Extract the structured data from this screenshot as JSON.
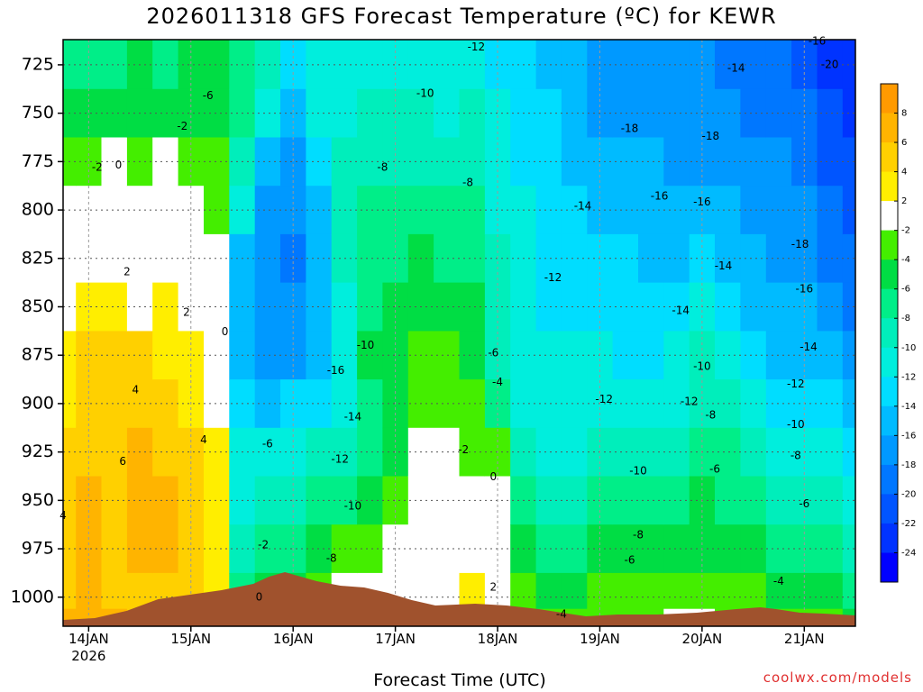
{
  "chart_data": {
    "type": "heatmap",
    "title": "2026011318 GFS Forecast Temperature (ºC) for KEWR",
    "xlabel": "Forecast Time (UTC)",
    "ylabel": "",
    "credit": "coolwx.com/models",
    "y_scale": "pressure (hPa), inverted",
    "ylim": [
      1015,
      712
    ],
    "xlim": [
      "2026-01-13T18:00Z",
      "2026-01-21T12:00Z"
    ],
    "yticks": [
      725,
      750,
      775,
      800,
      825,
      850,
      875,
      900,
      925,
      950,
      975,
      1000
    ],
    "xticks": [
      {
        "label": "14JAN",
        "sublabel": "2026",
        "time": "2026-01-14T00:00Z"
      },
      {
        "label": "15JAN",
        "sublabel": "",
        "time": "2026-01-15T00:00Z"
      },
      {
        "label": "16JAN",
        "sublabel": "",
        "time": "2026-01-16T00:00Z"
      },
      {
        "label": "17JAN",
        "sublabel": "",
        "time": "2026-01-17T00:00Z"
      },
      {
        "label": "18JAN",
        "sublabel": "",
        "time": "2026-01-18T00:00Z"
      },
      {
        "label": "19JAN",
        "sublabel": "",
        "time": "2026-01-19T00:00Z"
      },
      {
        "label": "20JAN",
        "sublabel": "",
        "time": "2026-01-20T00:00Z"
      },
      {
        "label": "21JAN",
        "sublabel": "",
        "time": "2026-01-21T00:00Z"
      }
    ],
    "grid": true,
    "colorbar": {
      "placement": "right",
      "labels": [
        "8",
        "6",
        "4",
        "2",
        "-2",
        "-4",
        "-6",
        "-8",
        "-10",
        "-12",
        "-14",
        "-16",
        "-18",
        "-20",
        "-22",
        "-24"
      ],
      "colors": [
        "#ff9a00",
        "#ffb400",
        "#ffd000",
        "#ffee00",
        "#ffffff",
        "#44ee00",
        "#00dd44",
        "#00ee88",
        "#00eebb",
        "#00eedd",
        "#00ddff",
        "#00bbff",
        "#0099ff",
        "#0077ff",
        "#0055ff",
        "#0033ff",
        "#0000ff"
      ]
    },
    "columns": [
      {
        "time": "2026-01-13T18:00Z",
        "temps": [
          -7,
          -6,
          -3,
          -2,
          0,
          1,
          2,
          3,
          4,
          4,
          5,
          5,
          6
        ]
      },
      {
        "time": "2026-01-14T00:00Z",
        "temps": [
          -8,
          -6,
          -3,
          -1,
          1,
          2,
          4,
          5,
          5,
          6,
          6,
          6,
          7
        ]
      },
      {
        "time": "2026-01-14T06:00Z",
        "temps": [
          -7,
          -5,
          -2,
          0,
          1,
          2,
          4,
          5,
          5,
          5,
          5,
          5,
          6
        ]
      },
      {
        "time": "2026-01-14T12:00Z",
        "temps": [
          -6,
          -5,
          -3,
          -1,
          0,
          1,
          4,
          5,
          6,
          6,
          6,
          5,
          5
        ]
      },
      {
        "time": "2026-01-14T18:00Z",
        "temps": [
          -7,
          -5,
          -2,
          -1,
          1,
          2,
          3,
          4,
          5,
          6,
          6,
          4,
          4
        ]
      },
      {
        "time": "2026-01-15T00:00Z",
        "temps": [
          -6,
          -5,
          -3,
          -1,
          0,
          1,
          2,
          3,
          4,
          5,
          5,
          4,
          4
        ]
      },
      {
        "time": "2026-01-15T06:00Z",
        "temps": [
          -6,
          -5,
          -4,
          -3,
          -2,
          -1,
          0,
          1,
          2,
          3,
          3,
          2,
          0
        ]
      },
      {
        "time": "2026-01-15T12:00Z",
        "temps": [
          -8,
          -8,
          -10,
          -12,
          -15,
          -16,
          -15,
          -14,
          -12,
          -11,
          -10,
          -8,
          -7
        ]
      },
      {
        "time": "2026-01-15T18:00Z",
        "temps": [
          -10,
          -12,
          -15,
          -17,
          -18,
          -18,
          -17,
          -15,
          -12,
          -10,
          -8,
          -6,
          -4
        ]
      },
      {
        "time": "2026-01-16T00:00Z",
        "temps": [
          -13,
          -15,
          -17,
          -18,
          -19,
          -18,
          -17,
          -14,
          -12,
          -10,
          -8,
          -5,
          -3
        ]
      },
      {
        "time": "2026-01-16T06:00Z",
        "temps": [
          -12,
          -12,
          -14,
          -16,
          -16,
          -16,
          -15,
          -13,
          -10,
          -8,
          -6,
          -4,
          -3
        ]
      },
      {
        "time": "2026-01-16T12:00Z",
        "temps": [
          -12,
          -11,
          -10,
          -10,
          -10,
          -11,
          -12,
          -11,
          -9,
          -7,
          -4,
          -2,
          -1
        ]
      },
      {
        "time": "2026-01-16T18:00Z",
        "temps": [
          -12,
          -10,
          -9,
          -8,
          -7,
          -7,
          -6,
          -7,
          -8,
          -6,
          -3,
          -1,
          0
        ]
      },
      {
        "time": "2026-01-17T00:00Z",
        "temps": [
          -12,
          -10,
          -9,
          -8,
          -7,
          -6,
          -6,
          -6,
          -5,
          -3,
          -1,
          0,
          1
        ]
      },
      {
        "time": "2026-01-17T06:00Z",
        "temps": [
          -11,
          -10,
          -9,
          -8,
          -6,
          -5,
          -4,
          -3,
          -1,
          0,
          0,
          1,
          1
        ]
      },
      {
        "time": "2026-01-17T12:00Z",
        "temps": [
          -11,
          -11,
          -9,
          -8,
          -7,
          -6,
          -4,
          -3,
          -1,
          0,
          0,
          1,
          1
        ]
      },
      {
        "time": "2026-01-17T18:00Z",
        "temps": [
          -11,
          -10,
          -9,
          -8,
          -7,
          -6,
          -5,
          -4,
          -3,
          -1,
          0,
          2,
          3
        ]
      },
      {
        "time": "2026-01-18T00:00Z",
        "temps": [
          -13,
          -12,
          -12,
          -11,
          -10,
          -10,
          -9,
          -7,
          -4,
          -1,
          0,
          1,
          1
        ]
      },
      {
        "time": "2026-01-18T06:00Z",
        "temps": [
          -14,
          -13,
          -13,
          -12,
          -12,
          -12,
          -12,
          -11,
          -10,
          -8,
          -6,
          -4,
          -3
        ]
      },
      {
        "time": "2026-01-18T12:00Z",
        "temps": [
          -15,
          -14,
          -14,
          -14,
          -13,
          -13,
          -12,
          -12,
          -11,
          -9,
          -7,
          -5,
          -4
        ]
      },
      {
        "time": "2026-01-18T18:00Z",
        "temps": [
          -16,
          -16,
          -15,
          -14,
          -13,
          -13,
          -12,
          -12,
          -11,
          -9,
          -7,
          -5,
          -4
        ]
      },
      {
        "time": "2026-01-19T00:00Z",
        "temps": [
          -17,
          -17,
          -16,
          -15,
          -14,
          -13,
          -12,
          -12,
          -10,
          -8,
          -6,
          -4,
          -3
        ]
      },
      {
        "time": "2026-01-19T06:00Z",
        "temps": [
          -17,
          -17,
          -16,
          -15,
          -14,
          -14,
          -13,
          -12,
          -10,
          -8,
          -6,
          -4,
          -3
        ]
      },
      {
        "time": "2026-01-19T12:00Z",
        "temps": [
          -17,
          -17,
          -16,
          -16,
          -15,
          -14,
          -13,
          -12,
          -10,
          -8,
          -6,
          -4,
          -3
        ]
      },
      {
        "time": "2026-01-19T18:00Z",
        "temps": [
          -18,
          -18,
          -17,
          -16,
          -15,
          -14,
          -12,
          -11,
          -9,
          -7,
          -5,
          -4,
          -2
        ]
      },
      {
        "time": "2026-01-20T00:00Z",
        "temps": [
          -18,
          -18,
          -17,
          -16,
          -14,
          -12,
          -10,
          -9,
          -8,
          -6,
          -5,
          -4,
          -2
        ]
      },
      {
        "time": "2026-01-20T06:00Z",
        "temps": [
          -19,
          -18,
          -17,
          -16,
          -15,
          -13,
          -11,
          -10,
          -8,
          -7,
          -5,
          -4,
          -3
        ]
      },
      {
        "time": "2026-01-20T12:00Z",
        "temps": [
          -19,
          -19,
          -18,
          -17,
          -16,
          -15,
          -14,
          -12,
          -10,
          -8,
          -6,
          -4,
          -3
        ]
      },
      {
        "time": "2026-01-20T18:00Z",
        "temps": [
          -20,
          -19,
          -18,
          -18,
          -17,
          -16,
          -15,
          -13,
          -11,
          -9,
          -7,
          -5,
          -3
        ]
      },
      {
        "time": "2026-01-21T00:00Z",
        "temps": [
          -21,
          -20,
          -19,
          -18,
          -17,
          -16,
          -15,
          -13,
          -11,
          -9,
          -7,
          -5,
          -3
        ]
      },
      {
        "time": "2026-01-21T06:00Z",
        "temps": [
          -23,
          -22,
          -21,
          -20,
          -19,
          -18,
          -16,
          -14,
          -12,
          -10,
          -8,
          -6,
          -4
        ]
      },
      {
        "time": "2026-01-21T12:00Z",
        "temps": [
          -24,
          -23,
          -22,
          -21,
          -20,
          -19,
          -17,
          -15,
          -13,
          -11,
          -9,
          -7,
          -5
        ]
      }
    ],
    "levels": [
      725,
      750,
      775,
      800,
      825,
      850,
      875,
      900,
      925,
      950,
      975,
      1000,
      1012
    ],
    "contour_labels": [
      {
        "text": "-12",
        "time": "2026-01-17T19:00Z",
        "p": 716
      },
      {
        "text": "-16",
        "time": "2026-01-21T03:00Z",
        "p": 713
      },
      {
        "text": "-20",
        "time": "2026-01-21T06:00Z",
        "p": 725
      },
      {
        "text": "-14",
        "time": "2026-01-20T08:00Z",
        "p": 727
      },
      {
        "text": "-6",
        "time": "2026-01-15T04:00Z",
        "p": 741
      },
      {
        "text": "-10",
        "time": "2026-01-17T07:00Z",
        "p": 740
      },
      {
        "text": "-2",
        "time": "2026-01-14T22:00Z",
        "p": 757
      },
      {
        "text": "-18",
        "time": "2026-01-19T07:00Z",
        "p": 758
      },
      {
        "text": "-18",
        "time": "2026-01-20T02:00Z",
        "p": 762
      },
      {
        "text": "-2",
        "time": "2026-01-14T02:00Z",
        "p": 778
      },
      {
        "text": "0",
        "time": "2026-01-14T07:00Z",
        "p": 777
      },
      {
        "text": "-8",
        "time": "2026-01-16T21:00Z",
        "p": 778
      },
      {
        "text": "-8",
        "time": "2026-01-17T17:00Z",
        "p": 786
      },
      {
        "text": "-16",
        "time": "2026-01-20T00:00Z",
        "p": 796
      },
      {
        "text": "-16",
        "time": "2026-01-19T14:00Z",
        "p": 793
      },
      {
        "text": "-14",
        "time": "2026-01-18T20:00Z",
        "p": 798
      },
      {
        "text": "-18",
        "time": "2026-01-20T23:00Z",
        "p": 818
      },
      {
        "text": "-14",
        "time": "2026-01-20T05:00Z",
        "p": 829
      },
      {
        "text": "2",
        "time": "2026-01-14T09:00Z",
        "p": 832
      },
      {
        "text": "-12",
        "time": "2026-01-18T13:00Z",
        "p": 835
      },
      {
        "text": "-16",
        "time": "2026-01-21T00:00Z",
        "p": 841
      },
      {
        "text": "2",
        "time": "2026-01-14T23:00Z",
        "p": 853
      },
      {
        "text": "-14",
        "time": "2026-01-19T19:00Z",
        "p": 852
      },
      {
        "text": "0",
        "time": "2026-01-15T08:00Z",
        "p": 863
      },
      {
        "text": "-10",
        "time": "2026-01-16T17:00Z",
        "p": 870
      },
      {
        "text": "-6",
        "time": "2026-01-17T23:00Z",
        "p": 874
      },
      {
        "text": "-16",
        "time": "2026-01-16T10:00Z",
        "p": 883
      },
      {
        "text": "-10",
        "time": "2026-01-20T00:00Z",
        "p": 881
      },
      {
        "text": "-14",
        "time": "2026-01-21T01:00Z",
        "p": 871
      },
      {
        "text": "4",
        "time": "2026-01-14T11:00Z",
        "p": 893
      },
      {
        "text": "-4",
        "time": "2026-01-18T00:00Z",
        "p": 889
      },
      {
        "text": "-12",
        "time": "2026-01-19T01:00Z",
        "p": 898
      },
      {
        "text": "-12",
        "time": "2026-01-19T21:00Z",
        "p": 899
      },
      {
        "text": "-12",
        "time": "2026-01-20T22:00Z",
        "p": 890
      },
      {
        "text": "-14",
        "time": "2026-01-16T14:00Z",
        "p": 907
      },
      {
        "text": "-8",
        "time": "2026-01-20T02:00Z",
        "p": 906
      },
      {
        "text": "-10",
        "time": "2026-01-20T22:00Z",
        "p": 911
      },
      {
        "text": "4",
        "time": "2026-01-15T03:00Z",
        "p": 919
      },
      {
        "text": "-2",
        "time": "2026-01-17T16:00Z",
        "p": 924
      },
      {
        "text": "-6",
        "time": "2026-01-15T18:00Z",
        "p": 921
      },
      {
        "text": "-8",
        "time": "2026-01-20T22:00Z",
        "p": 927
      },
      {
        "text": "-12",
        "time": "2026-01-16T11:00Z",
        "p": 929
      },
      {
        "text": "6",
        "time": "2026-01-14T08:00Z",
        "p": 930
      },
      {
        "text": "-10",
        "time": "2026-01-19T09:00Z",
        "p": 935
      },
      {
        "text": "-6",
        "time": "2026-01-20T03:00Z",
        "p": 934
      },
      {
        "text": "0",
        "time": "2026-01-17T23:00Z",
        "p": 938
      },
      {
        "text": "-10",
        "time": "2026-01-16T14:00Z",
        "p": 953
      },
      {
        "text": "-6",
        "time": "2026-01-21T00:00Z",
        "p": 952
      },
      {
        "text": "4",
        "time": "2026-01-13T18:00Z",
        "p": 958
      },
      {
        "text": "-8",
        "time": "2026-01-19T09:00Z",
        "p": 968
      },
      {
        "text": "-2",
        "time": "2026-01-15T17:00Z",
        "p": 973
      },
      {
        "text": "-8",
        "time": "2026-01-16T09:00Z",
        "p": 980
      },
      {
        "text": "-6",
        "time": "2026-01-19T07:00Z",
        "p": 981
      },
      {
        "text": "2",
        "time": "2026-01-17T23:00Z",
        "p": 995
      },
      {
        "text": "0",
        "time": "2026-01-15T16:00Z",
        "p": 1000
      },
      {
        "text": "-4",
        "time": "2026-01-20T18:00Z",
        "p": 992
      },
      {
        "text": "-4",
        "time": "2026-01-18T15:00Z",
        "p": 1009
      }
    ]
  }
}
